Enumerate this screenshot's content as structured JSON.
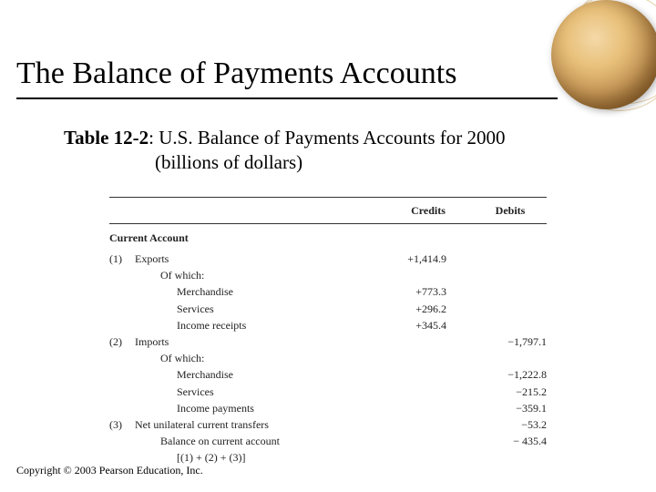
{
  "title": "The Balance of Payments Accounts",
  "caption": {
    "bold": "Table 12-2",
    "rest": ": U.S. Balance of Payments Accounts for 2000",
    "line2": "(billions of dollars)"
  },
  "headers": {
    "credits": "Credits",
    "debits": "Debits"
  },
  "section_header": "Current Account",
  "rows": [
    {
      "num": "(1)",
      "label": "Exports",
      "credits": "+1,414.9",
      "debits": "",
      "indent": 0
    },
    {
      "num": "",
      "label": "Of which:",
      "credits": "",
      "debits": "",
      "indent": 1
    },
    {
      "num": "",
      "label": "Merchandise",
      "credits": "+773.3",
      "debits": "",
      "indent": 2
    },
    {
      "num": "",
      "label": "Services",
      "credits": "+296.2",
      "debits": "",
      "indent": 2
    },
    {
      "num": "",
      "label": "Income receipts",
      "credits": "+345.4",
      "debits": "",
      "indent": 2
    },
    {
      "num": "(2)",
      "label": "Imports",
      "credits": "",
      "debits": "−1,797.1",
      "indent": 0
    },
    {
      "num": "",
      "label": "Of which:",
      "credits": "",
      "debits": "",
      "indent": 1
    },
    {
      "num": "",
      "label": "Merchandise",
      "credits": "",
      "debits": "−1,222.8",
      "indent": 2
    },
    {
      "num": "",
      "label": "Services",
      "credits": "",
      "debits": "−215.2",
      "indent": 2
    },
    {
      "num": "",
      "label": "Income payments",
      "credits": "",
      "debits": "−359.1",
      "indent": 2
    },
    {
      "num": "(3)",
      "label": "Net unilateral current transfers",
      "credits": "",
      "debits": "−53.2",
      "indent": 0
    },
    {
      "num": "",
      "label": "Balance on current account",
      "credits": "",
      "debits": "− 435.4",
      "indent": 1
    },
    {
      "num": "",
      "label": "[(1) + (2) + (3)]",
      "credits": "",
      "debits": "",
      "indent": 2
    }
  ],
  "copyright": "Copyright © 2003 Pearson Education, Inc.",
  "style": {
    "title_fontsize": 34,
    "caption_fontsize": 21,
    "table_fontsize": 12,
    "copyright_fontsize": 12,
    "bg_color": "#ffffff",
    "text_color": "#000000",
    "divider_color": "#333333",
    "globe_colors": [
      "#f4d9a8",
      "#e8c07a",
      "#c89a5a",
      "#a67840",
      "#7a5628"
    ]
  }
}
